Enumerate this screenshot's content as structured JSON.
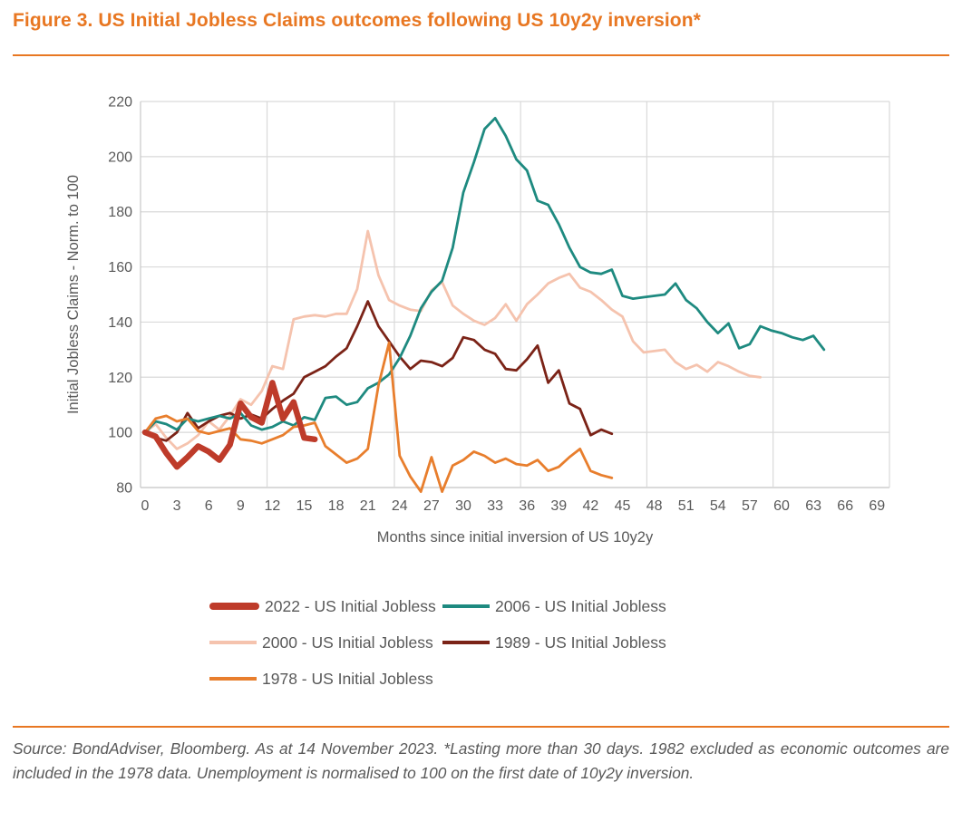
{
  "title": "Figure 3. US Initial Jobless Claims outcomes following US 10y2y inversion*",
  "accent_color": "#E87722",
  "chart_data": {
    "type": "line",
    "title": "Figure 3. US Initial Jobless Claims outcomes following US 10y2y inversion*",
    "xlabel": "Months since initial inversion of US 10y2y",
    "ylabel": "Initial Jobless Claims - Norm. to 100",
    "ylim": [
      80,
      220
    ],
    "yticks": [
      220,
      200,
      180,
      160,
      140,
      120,
      100,
      80
    ],
    "xticks": [
      0,
      3,
      6,
      9,
      12,
      15,
      18,
      21,
      24,
      27,
      30,
      33,
      36,
      39,
      42,
      45,
      48,
      51,
      54,
      57,
      60,
      63,
      66,
      69
    ],
    "grid": "on",
    "grid_color": "#D9D9D9",
    "axis_text_color": "#595959",
    "vertical_gridline_months": [
      11.5,
      23.5,
      35.4,
      47.3,
      59.2
    ],
    "legend_position": "bottom",
    "x_unit": "months since inversion, one point per month starting at 0",
    "series": [
      {
        "name": "2022 - US Initial Jobless",
        "year": "2022",
        "color": "#BE3B2A",
        "line_width": 6.5,
        "values": [
          100,
          98.5,
          92.5,
          87.5,
          91,
          95,
          93,
          90,
          95.5,
          110.5,
          105.5,
          103.5,
          118,
          105,
          111,
          98,
          97.5
        ]
      },
      {
        "name": "2006 - US Initial Jobless",
        "year": "2006",
        "color": "#1E8A80",
        "line_width": 2.8,
        "values": [
          100,
          104,
          103,
          101,
          105,
          104,
          105,
          106,
          105,
          107,
          102.5,
          101,
          102,
          104,
          102.5,
          105.5,
          104.5,
          112.5,
          113,
          110,
          111,
          116,
          118,
          121,
          127,
          135,
          145,
          151,
          155,
          167,
          187,
          198,
          210,
          214,
          207.5,
          199,
          195,
          184,
          182.5,
          175.5,
          167,
          160,
          158,
          157.5,
          159,
          149.5,
          148.5,
          149,
          149.5,
          150,
          154,
          148,
          145,
          140,
          136,
          139.5,
          130.5,
          132,
          138.5,
          137,
          136,
          134.5,
          133.5,
          135,
          130
        ]
      },
      {
        "name": "2000 - US Initial Jobless",
        "year": "2000",
        "color": "#F5C3AE",
        "line_width": 2.8,
        "values": [
          100,
          103,
          98,
          94,
          96,
          99,
          104,
          101,
          106,
          112,
          110,
          115,
          124,
          123,
          141,
          142,
          142.5,
          142,
          143,
          143,
          152,
          173,
          157,
          148,
          146,
          144.5,
          144,
          151.5,
          154.5,
          146,
          143,
          140.5,
          139,
          141.5,
          146.5,
          140.5,
          146.5,
          150,
          154,
          156,
          157.5,
          152.5,
          151,
          148,
          144.5,
          142,
          133,
          129,
          129.5,
          130,
          125.5,
          123,
          124.5,
          122,
          125.5,
          124,
          122,
          120.5,
          120
        ]
      },
      {
        "name": "1989 - US Initial Jobless",
        "year": "1989",
        "color": "#7B2317",
        "line_width": 2.8,
        "values": [
          100,
          98,
          97,
          100,
          107,
          101.5,
          104,
          106,
          107,
          105,
          106.5,
          105,
          108.5,
          111.5,
          114,
          120,
          122,
          124,
          127.5,
          130.5,
          138.5,
          147.5,
          138.5,
          133,
          127.5,
          123,
          126,
          125.5,
          124,
          127,
          134.5,
          133.5,
          130,
          128.5,
          123,
          122.5,
          126.5,
          131.5,
          118,
          122.5,
          110.5,
          108.5,
          99,
          101,
          99.5
        ]
      },
      {
        "name": "1978 - US Initial Jobless",
        "year": "1978",
        "color": "#E87E2D",
        "line_width": 2.8,
        "values": [
          100,
          105,
          106,
          104,
          105,
          100.5,
          99.5,
          100.5,
          101.5,
          97.5,
          97,
          96,
          97.5,
          99,
          102,
          102.5,
          103.5,
          95,
          92,
          89,
          90.5,
          94,
          117,
          132.5,
          91.5,
          84,
          78.5,
          91,
          78.5,
          88,
          90,
          93,
          91.5,
          89,
          90.5,
          88.5,
          88,
          90,
          86,
          87.5,
          91,
          94,
          86,
          84.5,
          83.5
        ]
      }
    ]
  },
  "legend_rows": [
    [
      0,
      1
    ],
    [
      2,
      3
    ],
    [
      4
    ]
  ],
  "footer": {
    "source_note": "Source: BondAdviser, Bloomberg. As at 14 November 2023. *Lasting more than 30 days. 1982 excluded as economic outcomes are included in the 1978 data. Unemployment is normalised to 100 on the first date of 10y2y inversion."
  }
}
